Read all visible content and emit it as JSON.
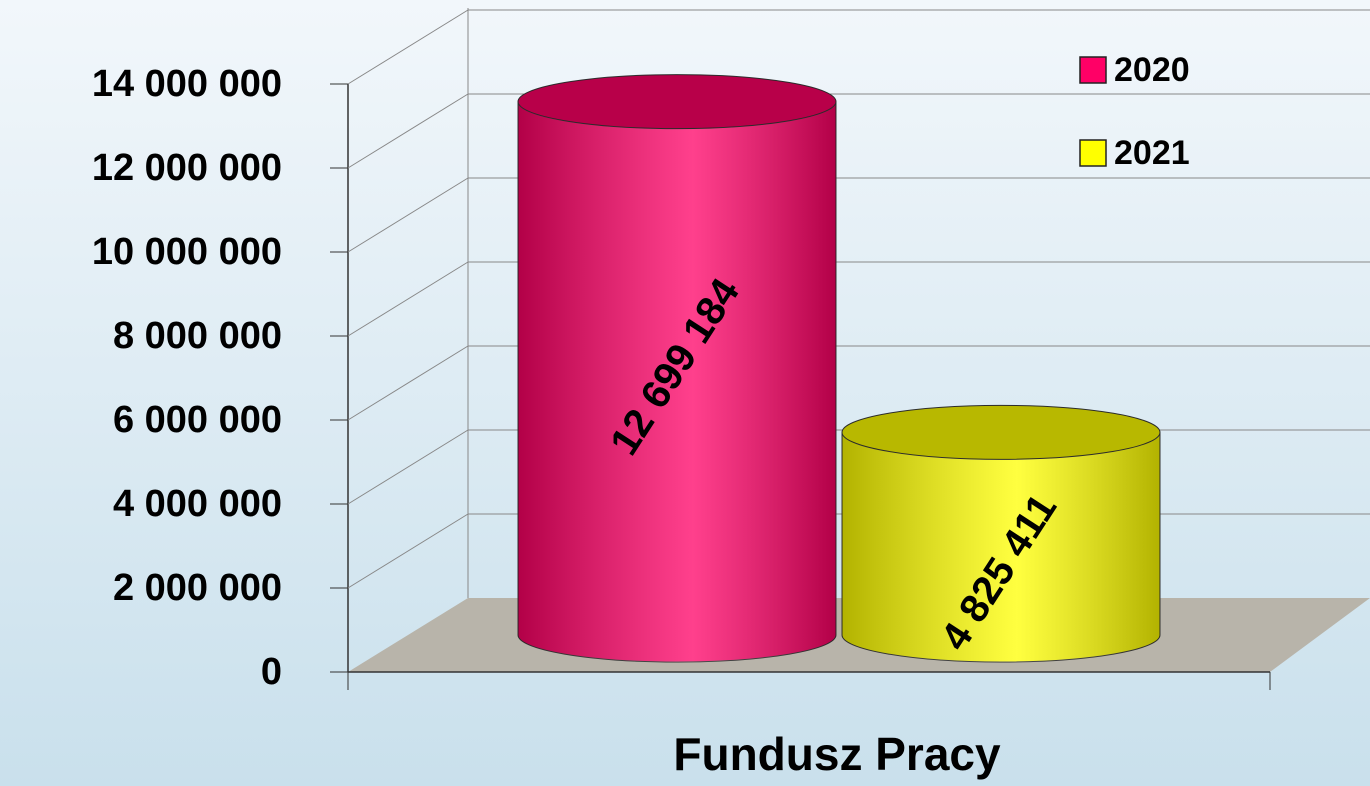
{
  "chart_data": {
    "type": "bar",
    "categories": [
      "Fundusz Pracy"
    ],
    "series": [
      {
        "name": "2020",
        "color": "#ff0066",
        "values": [
          12699184
        ],
        "value_labels": [
          "12 699 184"
        ]
      },
      {
        "name": "2021",
        "color": "#ffff00",
        "values": [
          4825411
        ],
        "value_labels": [
          "4 825 411"
        ]
      }
    ],
    "ylim": [
      0,
      14000000
    ],
    "yticks": [
      0,
      {
        "value": 2000000,
        "label": "2 000 000"
      },
      {
        "value": 4000000,
        "label": "4 000 000"
      },
      {
        "value": 6000000,
        "label": "6 000 000"
      },
      {
        "value": 8000000,
        "label": "8 000 000"
      },
      {
        "value": 10000000,
        "label": "10 000 000"
      },
      {
        "value": 12000000,
        "label": "12 000 000"
      },
      {
        "value": 14000000,
        "label": "14 000 000"
      }
    ],
    "grid": true,
    "legend": "top-right"
  }
}
